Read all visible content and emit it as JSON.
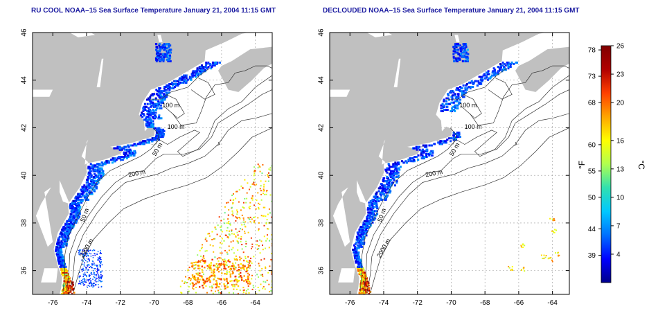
{
  "panels": [
    {
      "id": "left",
      "title": "RU COOL NOAA–15 Sea Surface Temperature January 21, 2004 11:15 GMT",
      "contours": [
        "100 m",
        "100 m",
        "50 m",
        "200 m",
        "50 m",
        "2000 m"
      ]
    },
    {
      "id": "right",
      "title": "DECLOUDED NOAA–15 Sea Surface Temperature January 21, 2004 11:15 GMT",
      "contours": [
        "100 m",
        "100 m",
        "50 m",
        "200 m",
        "50 m",
        "2000 m"
      ]
    }
  ],
  "axes": {
    "x_ticks": [
      "-76",
      "-74",
      "-72",
      "-70",
      "-68",
      "-66",
      "-64"
    ],
    "x_values": [
      -76,
      -74,
      -72,
      -70,
      -68,
      -66,
      -64
    ],
    "y_ticks": [
      "36",
      "38",
      "40",
      "42",
      "44",
      "46"
    ],
    "y_values": [
      36,
      38,
      40,
      42,
      44,
      46
    ],
    "lon_range": [
      -77.2,
      -63
    ],
    "lat_range": [
      35,
      46
    ]
  },
  "colorbar": {
    "f_label": "°F",
    "c_label": "°C",
    "f_ticks": [
      "78",
      "73",
      "68",
      "60",
      "55",
      "50",
      "44",
      "39"
    ],
    "f_values": [
      78,
      73,
      68,
      60,
      55,
      50,
      44,
      39
    ],
    "c_ticks": [
      "26",
      "23",
      "20",
      "16",
      "13",
      "10",
      "7",
      "4"
    ],
    "c_values": [
      26,
      23,
      20,
      16,
      13,
      10,
      7,
      4
    ],
    "c_range": [
      1,
      26
    ],
    "colors": [
      "#00008b",
      "#0000ff",
      "#0070ff",
      "#00c8ff",
      "#30e0b0",
      "#b0ff50",
      "#ffff00",
      "#ffa500",
      "#ff4000",
      "#b00000",
      "#800000"
    ]
  },
  "colors": {
    "land": "#c0c0c0",
    "ocean": "#ffffff",
    "grid": "#999999",
    "title": "#1a1aa0"
  }
}
